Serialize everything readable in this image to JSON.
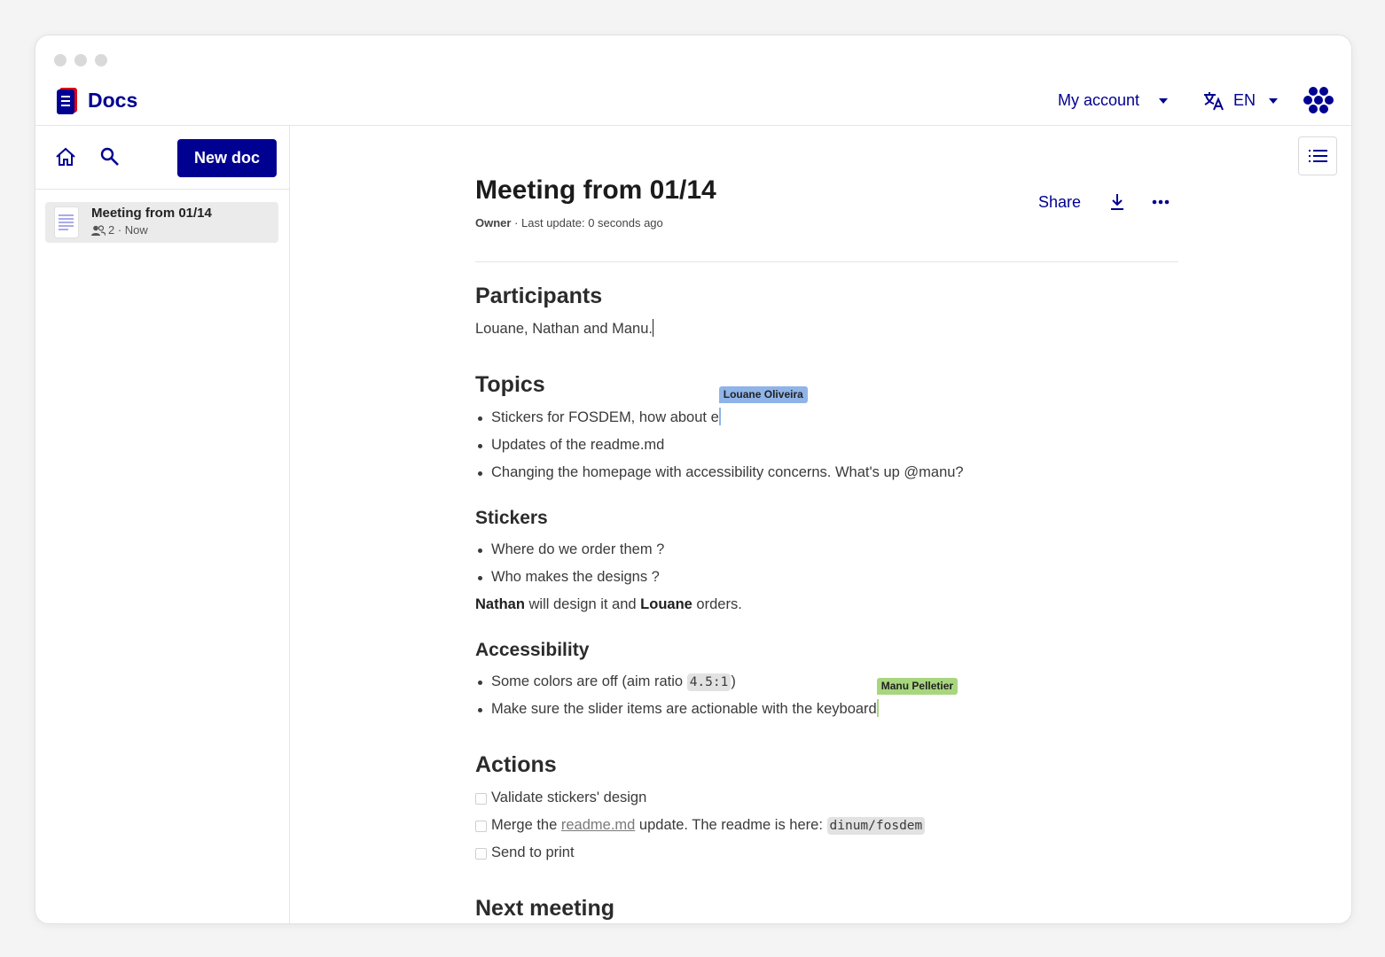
{
  "app": {
    "name": "Docs",
    "account": "My account",
    "language": "EN"
  },
  "sidebar": {
    "new_doc": "New doc",
    "docs": [
      {
        "title": "Meeting from 01/14",
        "meta": "2 · Now"
      }
    ]
  },
  "header": {
    "title": "Meeting from 01/14",
    "owner": "Owner",
    "updated": " · Last update: 0 seconds ago",
    "share": "Share"
  },
  "content": {
    "blocks": [
      {
        "type": "heading",
        "level": 2,
        "text": "Participants"
      },
      {
        "type": "paragraph",
        "spans": [
          {
            "text": "Louane, Nathan and Manu."
          }
        ],
        "caret": true
      },
      {
        "type": "heading",
        "level": 2,
        "text": "Topics"
      },
      {
        "type": "bullet",
        "spans": [
          {
            "text": "Stickers for FOSDEM, how about e"
          }
        ],
        "cursor": {
          "name": "Louane Oliveira",
          "color": "#8fb4e8"
        }
      },
      {
        "type": "bullet",
        "spans": [
          {
            "text": "Updates of the readme.md"
          }
        ]
      },
      {
        "type": "bullet",
        "spans": [
          {
            "text": "Changing the homepage with accessibility concerns. What's up @manu?"
          }
        ]
      },
      {
        "type": "heading",
        "level": 3,
        "text": "Stickers"
      },
      {
        "type": "bullet",
        "spans": [
          {
            "text": "Where do we order them ?"
          }
        ]
      },
      {
        "type": "bullet",
        "spans": [
          {
            "text": "Who makes the designs ?"
          }
        ]
      },
      {
        "type": "paragraph",
        "spans": [
          {
            "text": "Nathan",
            "style": "bold"
          },
          {
            "text": " will design it and "
          },
          {
            "text": "Louane",
            "style": "bold"
          },
          {
            "text": " orders."
          }
        ]
      },
      {
        "type": "heading",
        "level": 3,
        "text": "Accessibility"
      },
      {
        "type": "bullet",
        "spans": [
          {
            "text": "Some colors are off (aim ratio "
          },
          {
            "text": "4.5:1",
            "style": "code"
          },
          {
            "text": ")"
          }
        ]
      },
      {
        "type": "bullet",
        "spans": [
          {
            "text": "Make sure the slider items are actionable with the keyboard"
          }
        ],
        "cursor": {
          "name": "Manu Pelletier",
          "color": "#a8d67e"
        }
      },
      {
        "type": "heading",
        "level": 2,
        "text": "Actions"
      },
      {
        "type": "check",
        "spans": [
          {
            "text": "Validate stickers' design"
          }
        ]
      },
      {
        "type": "check",
        "spans": [
          {
            "text": "Merge the "
          },
          {
            "text": "readme.md",
            "style": "link"
          },
          {
            "text": " update. The readme is here: "
          },
          {
            "text": "dinum/fosdem",
            "style": "code"
          }
        ]
      },
      {
        "type": "check",
        "spans": [
          {
            "text": "Send to print"
          }
        ]
      },
      {
        "type": "heading",
        "level": 2,
        "text": "Next meeting"
      }
    ]
  }
}
